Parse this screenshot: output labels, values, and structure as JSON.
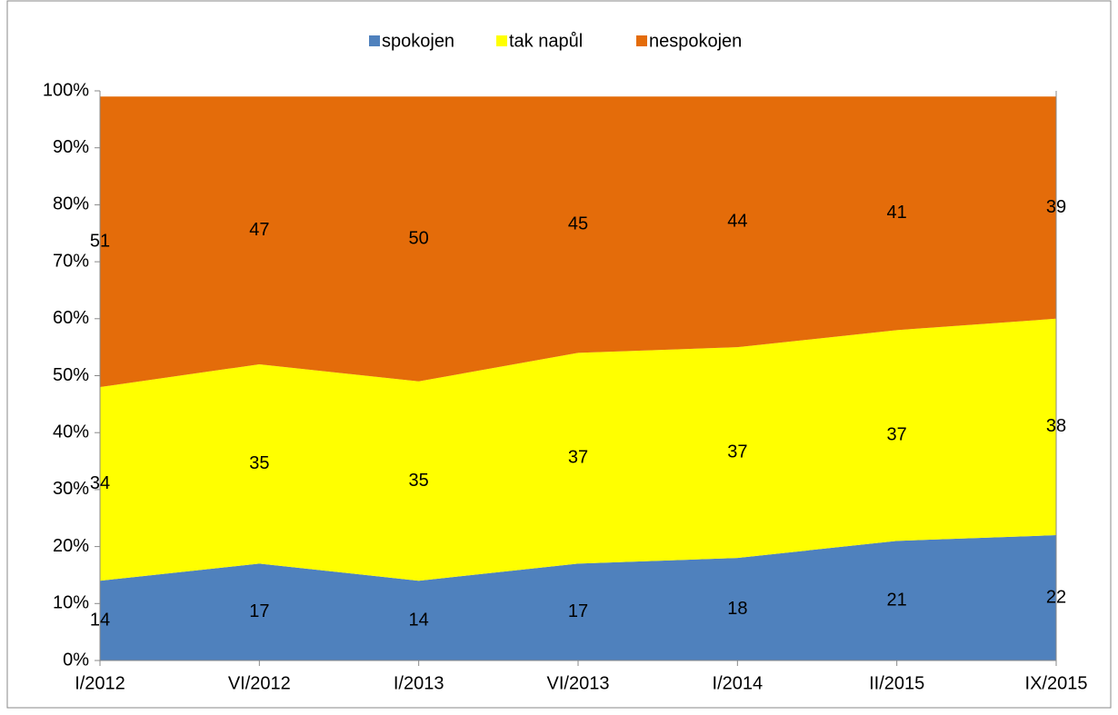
{
  "chart_data": {
    "type": "stacked_area",
    "categories": [
      "I/2012",
      "VI/2012",
      "I/2013",
      "VI/2013",
      "I/2014",
      "II/2015",
      "IX/2015"
    ],
    "series": [
      {
        "name": "spokojen",
        "color": "#4f81bd",
        "values": [
          14,
          17,
          14,
          17,
          18,
          21,
          22
        ]
      },
      {
        "name": "tak napůl",
        "color": "#ffff00",
        "values": [
          34,
          35,
          35,
          37,
          37,
          37,
          38
        ]
      },
      {
        "name": "nespokojen",
        "color": "#e46c0a",
        "values": [
          51,
          47,
          50,
          45,
          44,
          41,
          39
        ]
      }
    ],
    "ylim": [
      0,
      100
    ],
    "yticks": [
      {
        "value": 0,
        "label": "0%"
      },
      {
        "value": 10,
        "label": "10%"
      },
      {
        "value": 20,
        "label": "20%"
      },
      {
        "value": 30,
        "label": "30%"
      },
      {
        "value": 40,
        "label": "40%"
      },
      {
        "value": 50,
        "label": "50%"
      },
      {
        "value": 60,
        "label": "60%"
      },
      {
        "value": 70,
        "label": "70%"
      },
      {
        "value": 80,
        "label": "80%"
      },
      {
        "value": 90,
        "label": "90%"
      },
      {
        "value": 100,
        "label": "100%"
      }
    ],
    "legend": "top",
    "grid": false
  }
}
